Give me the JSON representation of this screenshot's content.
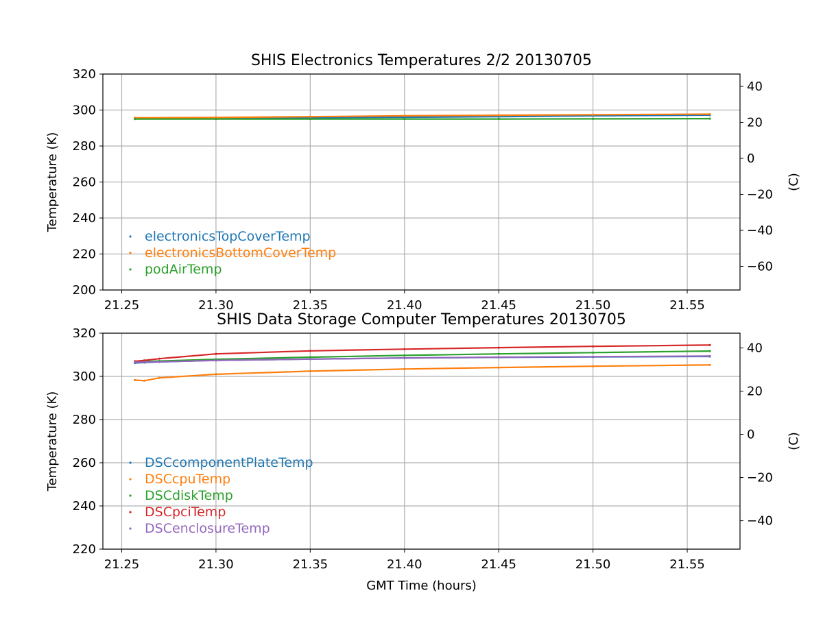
{
  "chart_data": [
    {
      "type": "scatter",
      "title": "SHIS Electronics Temperatures 2/2 20130705",
      "xlabel": "",
      "ylabel": "Temperature (K)",
      "ylabel_right": "(C)",
      "xlim": [
        21.24,
        21.578
      ],
      "ylim": [
        200,
        320
      ],
      "ylim_right_C": [
        -73.15,
        46.85
      ],
      "x_ticks": [
        "21.25",
        "21.30",
        "21.35",
        "21.40",
        "21.45",
        "21.50",
        "21.55"
      ],
      "y_ticks": [
        "200",
        "220",
        "240",
        "260",
        "280",
        "300",
        "320"
      ],
      "y_right_ticks": [
        "−60",
        "−40",
        "−20",
        "0",
        "20",
        "40"
      ],
      "grid": true,
      "legend_position": "lower-left",
      "x": [
        21.257,
        21.3,
        21.35,
        21.4,
        21.45,
        21.5,
        21.562
      ],
      "series": [
        {
          "name": "electronicsTopCoverTemp",
          "color": "#1f77b4",
          "values": [
            295.4,
            295.6,
            295.8,
            296.0,
            296.3,
            296.8,
            297.2
          ]
        },
        {
          "name": "electronicsBottomCoverTemp",
          "color": "#ff7f0e",
          "values": [
            295.7,
            295.9,
            296.3,
            296.8,
            297.1,
            297.4,
            297.7
          ]
        },
        {
          "name": "podAirTemp",
          "color": "#2ca02c",
          "values": [
            295.0,
            295.0,
            295.0,
            295.0,
            295.0,
            295.1,
            295.2
          ]
        }
      ]
    },
    {
      "type": "scatter",
      "title": "SHIS Data Storage Computer Temperatures 20130705",
      "xlabel": "GMT Time (hours)",
      "ylabel": "Temperature (K)",
      "ylabel_right": "(C)",
      "xlim": [
        21.24,
        21.578
      ],
      "ylim": [
        220,
        320
      ],
      "ylim_right_C": [
        -53.15,
        46.85
      ],
      "x_ticks": [
        "21.25",
        "21.30",
        "21.35",
        "21.40",
        "21.45",
        "21.50",
        "21.55"
      ],
      "y_ticks": [
        "220",
        "240",
        "260",
        "280",
        "300",
        "320"
      ],
      "y_right_ticks": [
        "−40",
        "−20",
        "0",
        "20",
        "40"
      ],
      "grid": true,
      "legend_position": "lower-left",
      "x": [
        21.257,
        21.262,
        21.27,
        21.3,
        21.35,
        21.4,
        21.45,
        21.5,
        21.562
      ],
      "series": [
        {
          "name": "DSCcomponentPlateTemp",
          "color": "#1f77b4",
          "values": [
            306.2,
            306.4,
            306.7,
            307.4,
            308.0,
            308.5,
            308.8,
            309.0,
            309.2
          ]
        },
        {
          "name": "DSCcpuTemp",
          "color": "#ff7f0e",
          "values": [
            298.3,
            298.0,
            299.3,
            301.0,
            302.4,
            303.4,
            304.1,
            304.7,
            305.3
          ]
        },
        {
          "name": "DSCdiskTemp",
          "color": "#2ca02c",
          "values": [
            306.6,
            306.9,
            307.1,
            307.9,
            308.9,
            309.7,
            310.4,
            311.0,
            311.7
          ]
        },
        {
          "name": "DSCpciTemp",
          "color": "#d62728",
          "values": [
            307.0,
            307.4,
            308.2,
            310.4,
            311.8,
            312.6,
            313.3,
            313.9,
            314.5
          ]
        },
        {
          "name": "DSCenclosureTemp",
          "color": "#9467bd",
          "values": [
            306.5,
            306.6,
            306.7,
            307.4,
            308.0,
            308.5,
            308.9,
            309.1,
            309.4
          ]
        }
      ]
    }
  ]
}
